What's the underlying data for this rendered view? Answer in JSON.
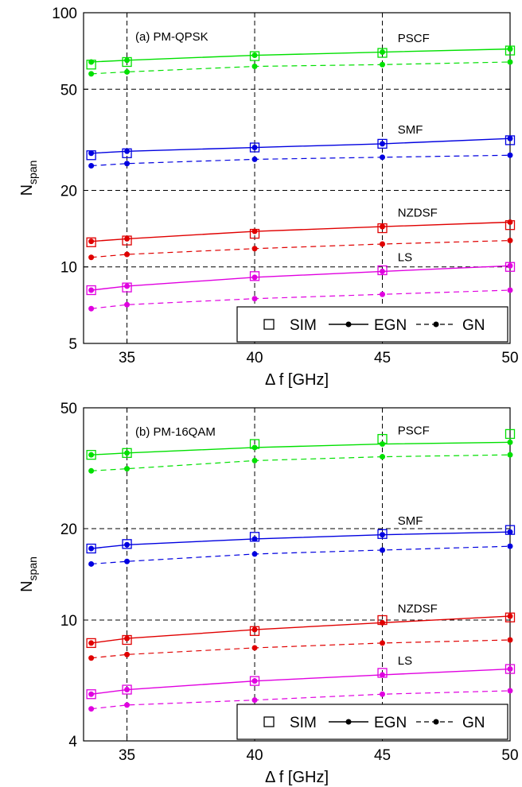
{
  "chart_data": [
    {
      "type": "line",
      "panel_label": "(a) PM-QPSK",
      "xlabel": "Δ f [GHz]",
      "ylabel": "N",
      "ylabel_sub": "span",
      "x_ticks": [
        35,
        40,
        45,
        50
      ],
      "y_ticks": [
        5,
        10,
        20,
        50,
        100
      ],
      "xlim": [
        33.3,
        50
      ],
      "ylim": [
        5,
        100
      ],
      "yscale": "log",
      "grid": true,
      "legend": {
        "position": "bottom-right",
        "entries": [
          "SIM",
          "EGN",
          "GN"
        ]
      },
      "x": [
        33.6,
        35,
        40,
        45,
        50
      ],
      "series": [
        {
          "name": "PSCF",
          "color": "#00e000",
          "sim": [
            62.5,
            64,
            67.5,
            69.5,
            71
          ],
          "egn": [
            64,
            65,
            68,
            70,
            72
          ],
          "gn": [
            57.5,
            58.5,
            61.5,
            62.5,
            64
          ]
        },
        {
          "name": "SMF",
          "color": "#0000e0",
          "sim": [
            27.5,
            28,
            29.5,
            30.5,
            31.5
          ],
          "egn": [
            28,
            28.5,
            29.5,
            30.5,
            32
          ],
          "gn": [
            25,
            25.5,
            26.5,
            27,
            27.5
          ]
        },
        {
          "name": "NZDSF",
          "color": "#e00000",
          "sim": [
            12.5,
            12.7,
            13.5,
            14.2,
            14.6
          ],
          "egn": [
            12.6,
            12.9,
            13.8,
            14.4,
            15
          ],
          "gn": [
            10.9,
            11.2,
            11.8,
            12.3,
            12.7
          ]
        },
        {
          "name": "LS",
          "color": "#e000e0",
          "sim": [
            8.1,
            8.3,
            9.2,
            9.7,
            10
          ],
          "egn": [
            8.1,
            8.4,
            9.1,
            9.6,
            10.1
          ],
          "gn": [
            6.85,
            7.1,
            7.5,
            7.8,
            8.1
          ]
        }
      ]
    },
    {
      "type": "line",
      "panel_label": "(b) PM-16QAM",
      "xlabel": "Δ f [GHz]",
      "ylabel": "N",
      "ylabel_sub": "span",
      "x_ticks": [
        35,
        40,
        45,
        50
      ],
      "y_ticks": [
        4,
        10,
        20,
        50
      ],
      "xlim": [
        33.3,
        50
      ],
      "ylim": [
        4,
        50
      ],
      "yscale": "log",
      "grid": true,
      "legend": {
        "position": "bottom-right",
        "entries": [
          "SIM",
          "EGN",
          "GN"
        ]
      },
      "x": [
        33.6,
        35,
        40,
        45,
        50
      ],
      "series": [
        {
          "name": "PSCF",
          "color": "#00e000",
          "sim": [
            35,
            35.5,
            38,
            39.5,
            41
          ],
          "egn": [
            35,
            35.5,
            37,
            38,
            38.5
          ],
          "gn": [
            31,
            31.5,
            33.5,
            34.5,
            35
          ]
        },
        {
          "name": "SMF",
          "color": "#0000e0",
          "sim": [
            17.2,
            17.8,
            18.8,
            19.2,
            19.8
          ],
          "egn": [
            17.2,
            17.7,
            18.5,
            19.1,
            19.5
          ],
          "gn": [
            15.3,
            15.6,
            16.5,
            17,
            17.5
          ]
        },
        {
          "name": "NZDSF",
          "color": "#e00000",
          "sim": [
            8.4,
            8.6,
            9.2,
            10,
            10.2
          ],
          "egn": [
            8.4,
            8.7,
            9.3,
            9.8,
            10.3
          ],
          "gn": [
            7.5,
            7.7,
            8.1,
            8.4,
            8.6
          ]
        },
        {
          "name": "LS",
          "color": "#e000e0",
          "sim": [
            5.7,
            5.9,
            6.3,
            6.7,
            6.9
          ],
          "egn": [
            5.7,
            5.9,
            6.3,
            6.6,
            6.9
          ],
          "gn": [
            5.1,
            5.25,
            5.45,
            5.7,
            5.85
          ]
        }
      ]
    }
  ]
}
